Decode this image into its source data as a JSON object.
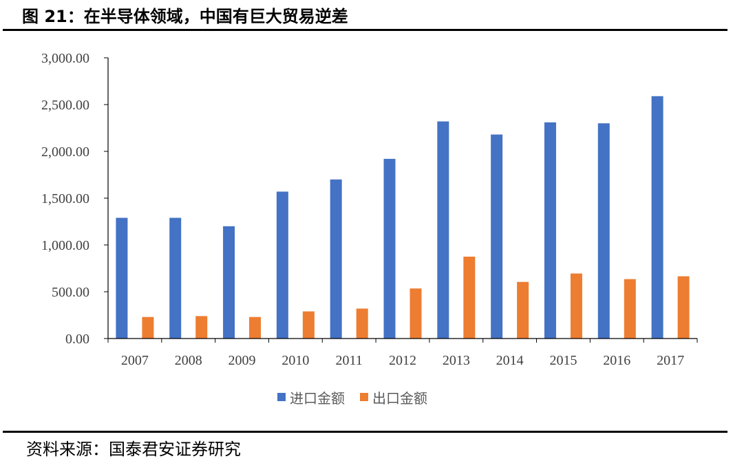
{
  "title": "图 21：在半导体领域，中国有巨大贸易逆差",
  "source": "资料来源：国泰君安证券研究",
  "colors": {
    "import": "#4472C4",
    "export": "#ED7D31",
    "axis": "#000000",
    "text": "#404040"
  },
  "chart_data": {
    "type": "bar",
    "categories": [
      "2007",
      "2008",
      "2009",
      "2010",
      "2011",
      "2012",
      "2013",
      "2014",
      "2015",
      "2016",
      "2017"
    ],
    "series": [
      {
        "name": "进口金额",
        "values": [
          1290,
          1290,
          1200,
          1570,
          1700,
          1920,
          2320,
          2180,
          2310,
          2300,
          2590
        ]
      },
      {
        "name": "出口金额",
        "values": [
          230,
          240,
          230,
          290,
          320,
          535,
          875,
          605,
          695,
          635,
          665
        ]
      }
    ],
    "y_ticks": [
      "0.00",
      "500.00",
      "1,000.00",
      "1,500.00",
      "2,000.00",
      "2,500.00",
      "3,000.00"
    ],
    "ylim": [
      0,
      3000
    ],
    "grid": false,
    "legend_position": "bottom"
  }
}
